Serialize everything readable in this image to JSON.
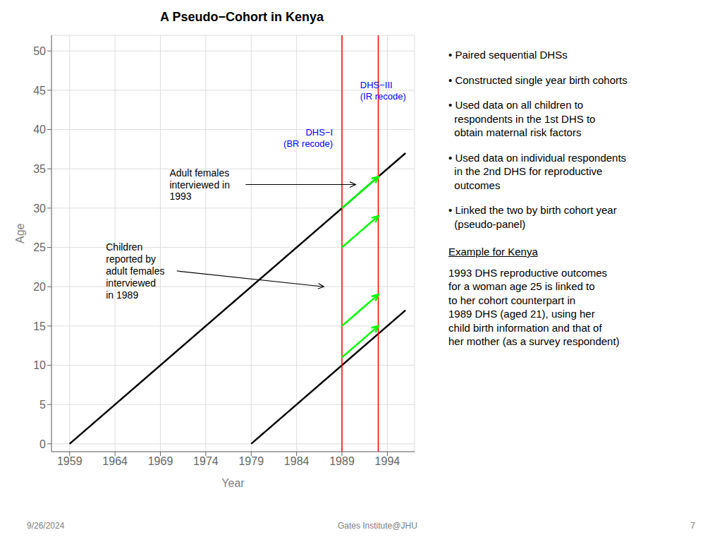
{
  "chart_data": {
    "type": "line",
    "title": "A Pseudo−Cohort in Kenya",
    "x_label": "Year",
    "y_label": "Age",
    "xlim": [
      1957,
      1997
    ],
    "ylim": [
      -1,
      52
    ],
    "xticks": [
      1959,
      1964,
      1969,
      1974,
      1979,
      1984,
      1989,
      1994
    ],
    "yticks": [
      0,
      5,
      10,
      15,
      20,
      25,
      30,
      35,
      40,
      45,
      50
    ],
    "grid": true,
    "series": [
      {
        "color": "black",
        "x": [
          1959,
          1996
        ],
        "values": [
          0,
          37
        ]
      },
      {
        "color": "black",
        "x": [
          1979,
          1996
        ],
        "values": [
          0,
          17
        ]
      }
    ],
    "vlines": [
      {
        "x": 1989,
        "color": "red"
      },
      {
        "x": 1993,
        "color": "red"
      }
    ],
    "arrows": [
      {
        "x1": 1989,
        "y1": 30,
        "x2": 1993,
        "y2": 34,
        "color": "lime"
      },
      {
        "x1": 1989,
        "y1": 25,
        "x2": 1993,
        "y2": 29,
        "color": "lime"
      },
      {
        "x1": 1989,
        "y1": 11,
        "x2": 1993,
        "y2": 15,
        "color": "lime"
      },
      {
        "x1": 1989,
        "y1": 15,
        "x2": 1993,
        "y2": 19,
        "color": "lime"
      }
    ],
    "annotations": [
      {
        "text": "DHS−I\n(BR recode)",
        "x": 1988,
        "y": 39,
        "color": "blue"
      },
      {
        "text": "DHS−III\n(IR recode)",
        "x": 1991,
        "y": 45,
        "color": "blue"
      },
      {
        "text": "Adult females\ninterviewed in\n1993",
        "xy": [
          1990.5,
          33
        ],
        "xytext": [
          1970,
          33
        ]
      },
      {
        "text": "Children\nreported by\nadult females\ninterviewed\nin 1989",
        "xy": [
          1987,
          20
        ],
        "xytext": [
          1963,
          22
        ]
      }
    ],
    "notes": [
      "• Paired sequential DHSs",
      "• Constructed single year birth cohorts",
      "• Used data on all children to\n  respondents in the 1st DHS to\n  obtain maternal risk factors",
      "• Used data on individual respondents\n  in the 2nd DHS for reproductive\n  outcomes",
      "• Linked the two by birth cohort year\n  (pseudo-panel)"
    ],
    "example_title": "Example for Kenya",
    "example_body": "1993 DHS reproductive outcomes\nfor a woman age 25 is linked to\nto her cohort counterpart in\n1989 DHS (aged 21), using her\nchild birth information and that of\nher mother (as a survey respondent)",
    "footer": [
      "9/26/2024",
      "Gates Institute@JHU",
      "7"
    ]
  }
}
